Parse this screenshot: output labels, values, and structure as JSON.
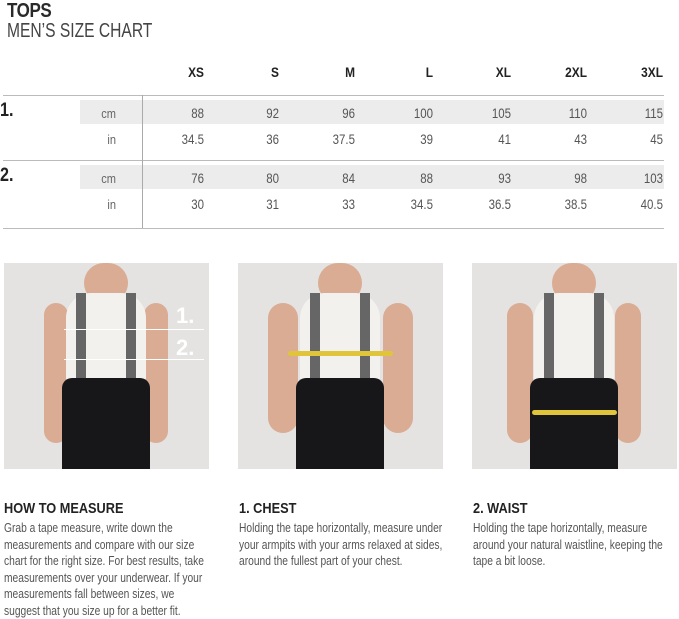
{
  "header": {
    "title": "TOPS",
    "subtitle": "MEN’S SIZE CHART"
  },
  "table": {
    "sizes": [
      "XS",
      "S",
      "M",
      "L",
      "XL",
      "2XL",
      "3XL"
    ],
    "groups": [
      {
        "label": "1.",
        "rows": [
          {
            "unit": "cm",
            "values": [
              "88",
              "92",
              "96",
              "100",
              "105",
              "110",
              "115"
            ]
          },
          {
            "unit": "in",
            "values": [
              "34.5",
              "36",
              "37.5",
              "39",
              "41",
              "43",
              "45"
            ]
          }
        ]
      },
      {
        "label": "2.",
        "rows": [
          {
            "unit": "cm",
            "values": [
              "76",
              "80",
              "84",
              "88",
              "93",
              "98",
              "103"
            ]
          },
          {
            "unit": "in",
            "values": [
              "30",
              "31",
              "33",
              "34.5",
              "36.5",
              "38.5",
              "40.5"
            ]
          }
        ]
      }
    ]
  },
  "photos": {
    "markers": [
      "1.",
      "2."
    ]
  },
  "sections": [
    {
      "heading": "HOW TO MEASURE",
      "text": "Grab a tape measure, write down the measurements and compare with our size chart for the right size. For best results, take measurements over your underwear. If your measurements fall between sizes, we suggest that you size up for a better fit."
    },
    {
      "heading": "1. CHEST",
      "text": "Holding the tape horizontally, measure under your armpits with your arms relaxed at sides, around the fullest part of your chest."
    },
    {
      "heading": "2. WAIST",
      "text": "Holding the tape horizontally, measure around your natural waistline, keeping the tape a bit loose."
    }
  ],
  "colors": {
    "band": "#ececec",
    "tape": "#e0c53a"
  }
}
